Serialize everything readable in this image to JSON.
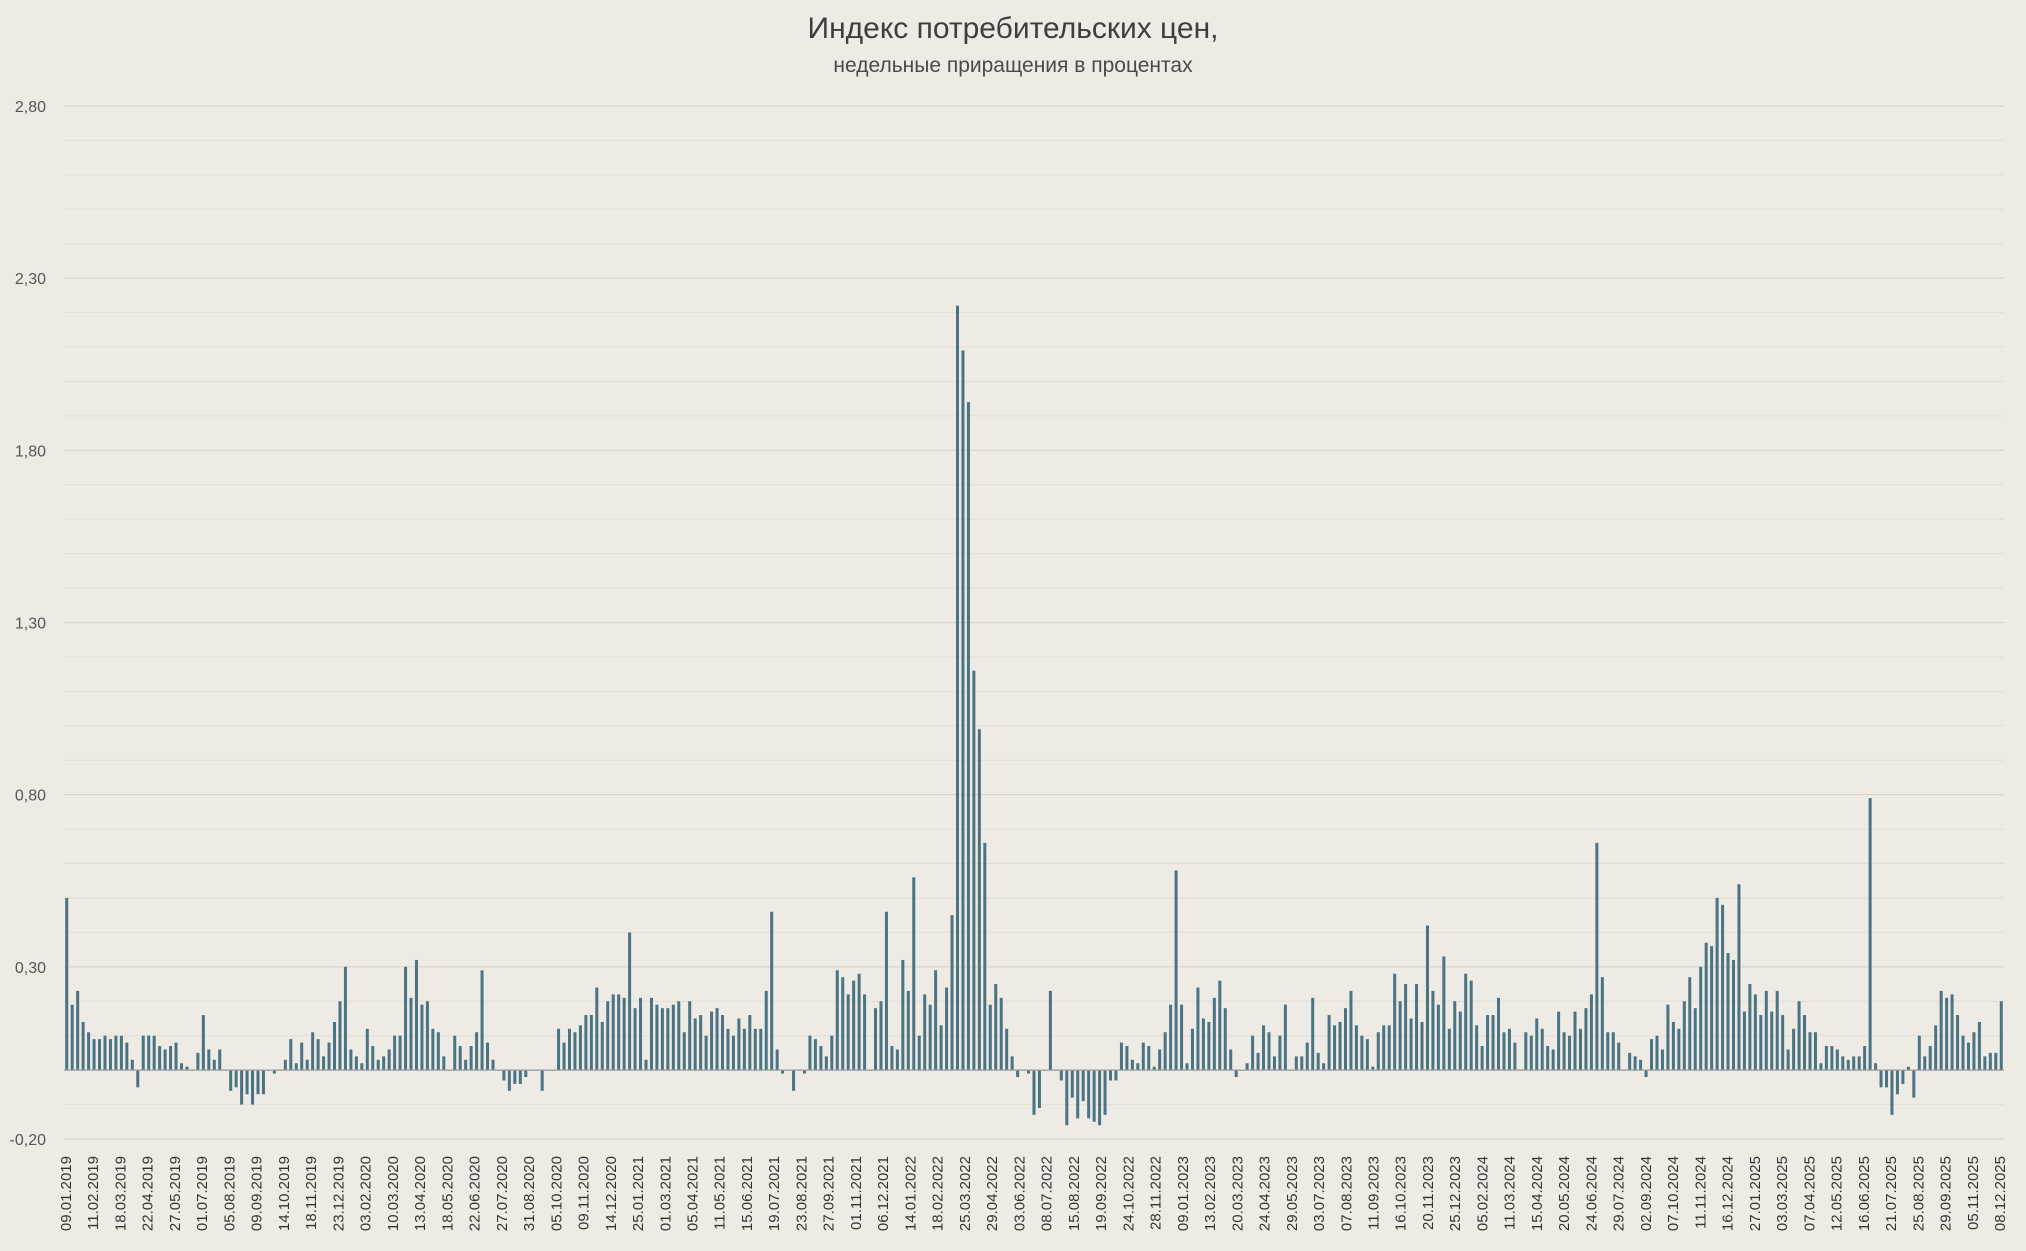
{
  "chart_data": {
    "type": "bar",
    "title": "Индекс потребительских цен,",
    "subtitle": "недельные приращения в процентах",
    "xlabel": "",
    "ylabel": "",
    "ylim": [
      -0.2,
      2.8
    ],
    "y_ticks": [
      "2,80",
      "2,30",
      "1,80",
      "1,30",
      "0,80",
      "0,30",
      "-0,20"
    ],
    "grid": true,
    "bar_color": "#4a7384",
    "x_tick_labels": [
      "09.01.2019",
      "11.02.2019",
      "18.03.2019",
      "22.04.2019",
      "27.05.2019",
      "01.07.2019",
      "05.08.2019",
      "09.09.2019",
      "14.10.2019",
      "18.11.2019",
      "23.12.2019",
      "03.02.2020",
      "10.03.2020",
      "13.04.2020",
      "18.05.2020",
      "22.06.2020",
      "27.07.2020",
      "31.08.2020",
      "05.10.2020",
      "09.11.2020",
      "14.12.2020",
      "25.01.2021",
      "01.03.2021",
      "05.04.2021",
      "11.05.2021",
      "15.06.2021",
      "19.07.2021",
      "23.08.2021",
      "27.09.2021",
      "01.11.2021",
      "06.12.2021",
      "14.01.2022",
      "18.02.2022",
      "25.03.2022",
      "29.04.2022",
      "03.06.2022",
      "08.07.2022",
      "15.08.2022",
      "19.09.2022",
      "24.10.2022",
      "28.11.2022",
      "09.01.2023",
      "13.02.2023",
      "20.03.2023",
      "24.04.2023",
      "29.05.2023",
      "03.07.2023",
      "07.08.2023",
      "11.09.2023",
      "16.10.2023",
      "20.11.2023",
      "25.12.2023",
      "05.02.2024",
      "11.03.2024",
      "15.04.2024",
      "20.05.2024",
      "24.06.2024",
      "29.07.2024",
      "02.09.2024",
      "07.10.2024",
      "11.11.2024",
      "16.12.2024",
      "27.01.2025",
      "03.03.2025",
      "07.04.2025",
      "12.05.2025",
      "16.06.2025",
      "21.07.2025",
      "25.08.2025",
      "29.09.2025",
      "05.11.2025",
      "08.12.2025"
    ],
    "values": [
      0.5,
      0.19,
      0.23,
      0.14,
      0.11,
      0.09,
      0.09,
      0.1,
      0.09,
      0.1,
      0.1,
      0.08,
      0.03,
      -0.05,
      0.1,
      0.1,
      0.1,
      0.07,
      0.06,
      0.07,
      0.08,
      0.02,
      0.01,
      0.0,
      0.05,
      0.16,
      0.06,
      0.03,
      0.06,
      0.0,
      -0.06,
      -0.05,
      -0.1,
      -0.07,
      -0.1,
      -0.07,
      -0.07,
      0.0,
      -0.01,
      0.0,
      0.03,
      0.09,
      0.02,
      0.08,
      0.03,
      0.11,
      0.09,
      0.04,
      0.08,
      0.14,
      0.2,
      0.3,
      0.06,
      0.04,
      0.02,
      0.12,
      0.07,
      0.03,
      0.04,
      0.06,
      0.1,
      0.1,
      0.3,
      0.21,
      0.32,
      0.19,
      0.2,
      0.12,
      0.11,
      0.04,
      0.0,
      0.1,
      0.07,
      0.03,
      0.07,
      0.11,
      0.29,
      0.08,
      0.03,
      0.0,
      -0.03,
      -0.06,
      -0.04,
      -0.04,
      -0.02,
      0.0,
      0.0,
      -0.06,
      0.0,
      0.0,
      0.12,
      0.08,
      0.12,
      0.11,
      0.13,
      0.16,
      0.16,
      0.24,
      0.14,
      0.2,
      0.22,
      0.22,
      0.21,
      0.4,
      0.18,
      0.21,
      0.03,
      0.21,
      0.19,
      0.18,
      0.18,
      0.19,
      0.2,
      0.11,
      0.2,
      0.15,
      0.16,
      0.1,
      0.17,
      0.18,
      0.16,
      0.12,
      0.1,
      0.15,
      0.12,
      0.16,
      0.12,
      0.12,
      0.23,
      0.46,
      0.06,
      -0.01,
      0.0,
      -0.06,
      0.0,
      -0.01,
      0.1,
      0.09,
      0.07,
      0.04,
      0.1,
      0.29,
      0.27,
      0.22,
      0.26,
      0.28,
      0.22,
      0.0,
      0.18,
      0.2,
      0.46,
      0.07,
      0.06,
      0.32,
      0.23,
      0.56,
      0.1,
      0.22,
      0.19,
      0.29,
      0.13,
      0.24,
      0.45,
      2.22,
      2.09,
      1.94,
      1.16,
      0.99,
      0.66,
      0.19,
      0.25,
      0.21,
      0.12,
      0.04,
      -0.02,
      0.0,
      -0.01,
      -0.13,
      -0.11,
      0.0,
      0.23,
      0.0,
      -0.03,
      -0.16,
      -0.08,
      -0.14,
      -0.09,
      -0.14,
      -0.15,
      -0.16,
      -0.13,
      -0.03,
      -0.03,
      0.08,
      0.07,
      0.03,
      0.02,
      0.08,
      0.07,
      0.01,
      0.06,
      0.11,
      0.19,
      0.58,
      0.19,
      0.02,
      0.12,
      0.24,
      0.15,
      0.14,
      0.21,
      0.26,
      0.18,
      0.06,
      -0.02,
      0.0,
      0.02,
      0.1,
      0.05,
      0.13,
      0.11,
      0.04,
      0.1,
      0.19,
      0.0,
      0.04,
      0.04,
      0.08,
      0.21,
      0.05,
      0.02,
      0.16,
      0.13,
      0.14,
      0.18,
      0.23,
      0.13,
      0.1,
      0.09,
      0.01,
      0.11,
      0.13,
      0.13,
      0.28,
      0.2,
      0.25,
      0.15,
      0.25,
      0.14,
      0.42,
      0.23,
      0.19,
      0.33,
      0.12,
      0.2,
      0.17,
      0.28,
      0.26,
      0.13,
      0.07,
      0.16,
      0.16,
      0.21,
      0.11,
      0.12,
      0.08,
      0.0,
      0.11,
      0.1,
      0.15,
      0.12,
      0.07,
      0.06,
      0.17,
      0.11,
      0.1,
      0.17,
      0.12,
      0.18,
      0.22,
      0.66,
      0.27,
      0.11,
      0.11,
      0.08,
      0.0,
      0.05,
      0.04,
      0.03,
      -0.02,
      0.09,
      0.1,
      0.06,
      0.19,
      0.14,
      0.12,
      0.2,
      0.27,
      0.18,
      0.3,
      0.37,
      0.36,
      0.5,
      0.48,
      0.34,
      0.32,
      0.54,
      0.17,
      0.25,
      0.22,
      0.16,
      0.23,
      0.17,
      0.23,
      0.16,
      0.06,
      0.12,
      0.2,
      0.16,
      0.11,
      0.11,
      0.02,
      0.07,
      0.07,
      0.06,
      0.04,
      0.03,
      0.04,
      0.04,
      0.07,
      0.79,
      0.02,
      -0.05,
      -0.05,
      -0.13,
      -0.07,
      -0.04,
      0.01,
      -0.08,
      0.1,
      0.04,
      0.07,
      0.13,
      0.23,
      0.21,
      0.22,
      0.16,
      0.1,
      0.08,
      0.11,
      0.14,
      0.04,
      0.05,
      0.05,
      0.2
    ]
  }
}
